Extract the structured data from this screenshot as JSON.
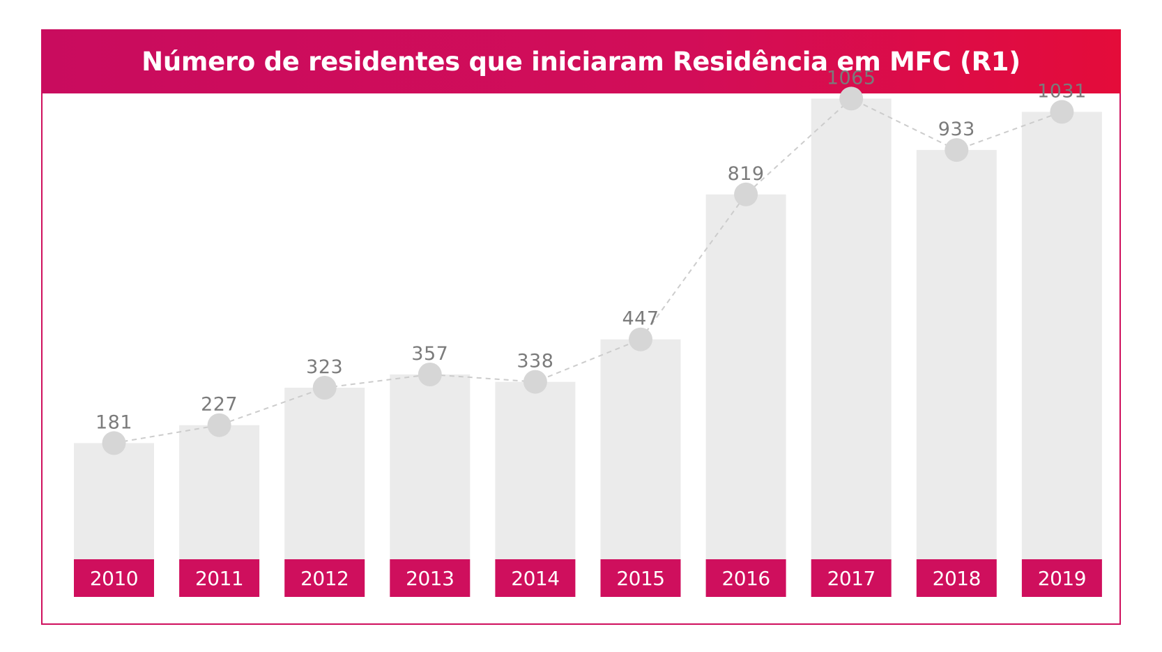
{
  "title": "Número de residentes que iniciaram Residência em MFC (R1)",
  "colors": {
    "accent": "#cf0f5d",
    "bar": "#ebebeb",
    "marker": "#d6d6d6",
    "line": "#cccccc",
    "value_label": "#7b7b7b",
    "category_text": "#ffffff"
  },
  "chart_data": {
    "type": "bar",
    "title": "Número de residentes que iniciaram Residência em MFC (R1)",
    "categories": [
      "2010",
      "2011",
      "2012",
      "2013",
      "2014",
      "2015",
      "2016",
      "2017",
      "2018",
      "2019"
    ],
    "values": [
      181,
      227,
      323,
      357,
      338,
      447,
      819,
      1065,
      933,
      1031
    ],
    "overlay": "dashed line with circular markers at each bar top",
    "data_labels": true,
    "xlabel": "",
    "ylabel": "",
    "grid": false,
    "legend": "none"
  }
}
